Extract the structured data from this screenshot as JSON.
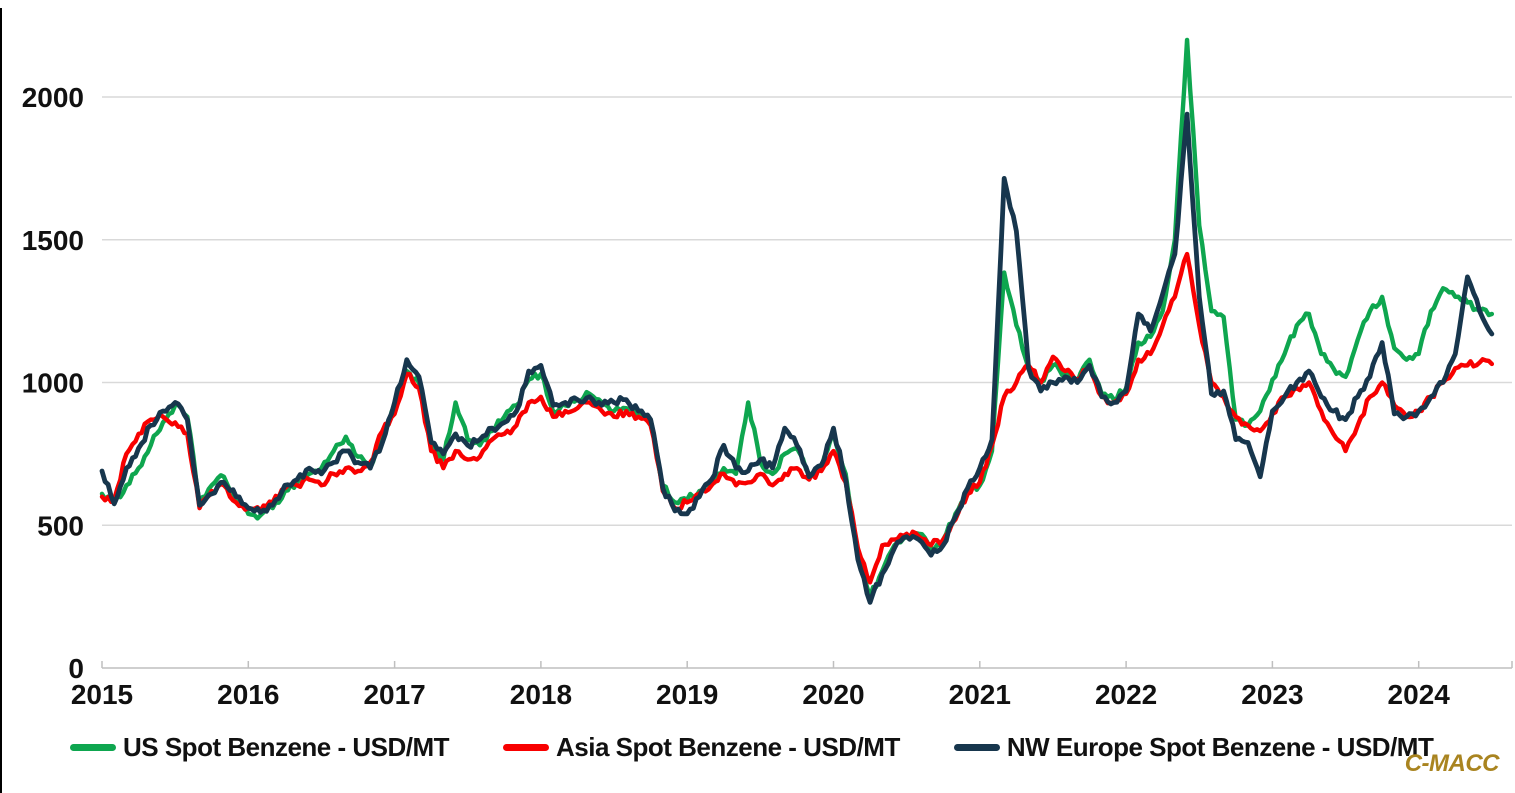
{
  "watermark": "C-MACC",
  "watermark_color": "#A98420",
  "colors": {
    "gridline": "#D9D9D9",
    "axis_line": "#BFBFBF",
    "tick_text": "#111111"
  },
  "chart_data": {
    "type": "line",
    "title": "",
    "xlabel": "",
    "ylabel": "",
    "x_start": "2015-01",
    "x_end": "2024-07",
    "x_frequency": "monthly",
    "x_tick_labels": [
      "2015",
      "2016",
      "2017",
      "2018",
      "2019",
      "2020",
      "2021",
      "2022",
      "2023",
      "2024"
    ],
    "y_ticks": [
      0,
      500,
      1000,
      1500,
      2000
    ],
    "ylim": [
      0,
      2300
    ],
    "grid": "horizontal",
    "legend_position": "bottom",
    "series": [
      {
        "name": "US Spot Benzene - USD/MT",
        "color": "#0EA64F",
        "values": [
          610,
          580,
          640,
          700,
          780,
          860,
          920,
          880,
          580,
          640,
          670,
          590,
          540,
          535,
          560,
          620,
          650,
          680,
          700,
          760,
          810,
          740,
          700,
          800,
          920,
          1040,
          1000,
          780,
          730,
          930,
          800,
          780,
          830,
          880,
          920,
          1010,
          1030,
          900,
          920,
          940,
          960,
          930,
          900,
          910,
          890,
          870,
          640,
          580,
          590,
          620,
          650,
          700,
          680,
          930,
          720,
          680,
          750,
          770,
          680,
          700,
          820,
          680,
          400,
          250,
          340,
          430,
          460,
          470,
          420,
          450,
          540,
          620,
          640,
          760,
          1385,
          1200,
          1050,
          1000,
          1060,
          1030,
          1000,
          1080,
          960,
          940,
          980,
          1140,
          1160,
          1250,
          1500,
          2200,
          1550,
          1250,
          1230,
          870,
          850,
          900,
          1010,
          1100,
          1200,
          1240,
          1100,
          1050,
          1020,
          1150,
          1250,
          1300,
          1120,
          1080,
          1100,
          1250,
          1330,
          1300,
          1280,
          1250,
          1240
        ]
      },
      {
        "name": "Asia Spot Benzene - USD/MT",
        "color": "#F80000",
        "values": [
          600,
          590,
          750,
          820,
          870,
          880,
          860,
          820,
          560,
          620,
          640,
          580,
          560,
          550,
          580,
          630,
          640,
          660,
          640,
          680,
          700,
          690,
          720,
          830,
          890,
          1030,
          980,
          760,
          700,
          760,
          730,
          740,
          800,
          820,
          850,
          930,
          950,
          880,
          900,
          910,
          930,
          900,
          880,
          900,
          880,
          850,
          620,
          560,
          580,
          610,
          640,
          680,
          640,
          650,
          680,
          640,
          680,
          700,
          660,
          690,
          760,
          650,
          420,
          300,
          430,
          450,
          470,
          460,
          430,
          450,
          520,
          610,
          650,
          780,
          950,
          1000,
          1060,
          1000,
          1090,
          1040,
          1010,
          1060,
          950,
          930,
          960,
          1080,
          1100,
          1200,
          1300,
          1450,
          1200,
          1000,
          950,
          880,
          850,
          830,
          890,
          950,
          980,
          1000,
          900,
          820,
          760,
          850,
          950,
          1000,
          920,
          880,
          900,
          950,
          1000,
          1050,
          1060,
          1070,
          1065
        ]
      },
      {
        "name": "NW Europe Spot Benzene - USD/MT",
        "color": "#17364D",
        "values": [
          690,
          575,
          700,
          770,
          850,
          900,
          930,
          870,
          570,
          610,
          650,
          600,
          560,
          545,
          570,
          640,
          660,
          700,
          680,
          720,
          760,
          720,
          700,
          790,
          930,
          1080,
          1020,
          790,
          750,
          820,
          780,
          800,
          840,
          860,
          900,
          1040,
          1060,
          920,
          930,
          940,
          950,
          920,
          930,
          940,
          900,
          870,
          630,
          550,
          540,
          600,
          660,
          780,
          700,
          690,
          730,
          700,
          840,
          780,
          670,
          710,
          840,
          660,
          380,
          230,
          330,
          420,
          460,
          450,
          395,
          430,
          530,
          630,
          700,
          800,
          1715,
          1530,
          1050,
          970,
          1000,
          1020,
          1000,
          1060,
          950,
          930,
          970,
          1240,
          1180,
          1310,
          1450,
          1940,
          1300,
          960,
          970,
          800,
          790,
          670,
          900,
          950,
          1000,
          1040,
          950,
          900,
          870,
          950,
          1020,
          1140,
          890,
          880,
          900,
          950,
          1000,
          1100,
          1370,
          1250,
          1170
        ]
      }
    ]
  }
}
